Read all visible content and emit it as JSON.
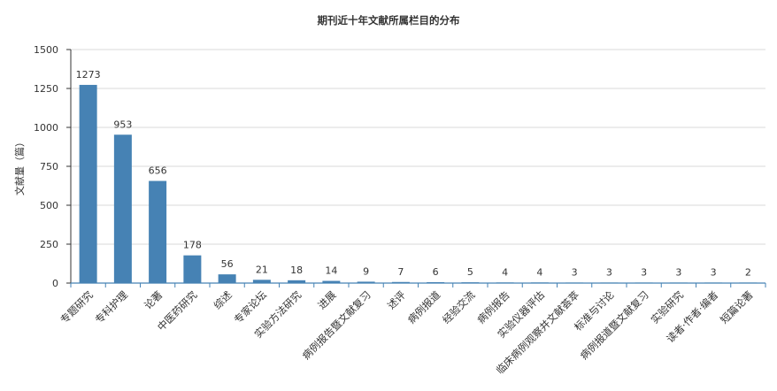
{
  "chart_data": {
    "type": "bar",
    "title": "期刊近十年文献所属栏目的分布",
    "xlabel": "",
    "ylabel": "文献量（篇）",
    "ylim": [
      0,
      1500
    ],
    "yticks": [
      0,
      250,
      500,
      750,
      1000,
      1250,
      1500
    ],
    "grid": true,
    "bar_color": "#4682b4",
    "categories": [
      "专题研究",
      "专科护理",
      "论著",
      "中医药研究",
      "综述",
      "专家论坛",
      "实验方法研究",
      "进展",
      "病例报告暨文献复习",
      "述评",
      "病例报道",
      "经验交流",
      "病例报告",
      "实验仪器评估",
      "临床病例观察并文献荟萃",
      "标准与讨论",
      "病例报道暨文献复习",
      "实验研究",
      "读者·作者·编者",
      "短篇论著"
    ],
    "values": [
      1273,
      953,
      656,
      178,
      56,
      21,
      18,
      14,
      9,
      7,
      6,
      5,
      4,
      4,
      3,
      3,
      3,
      3,
      3,
      2
    ]
  }
}
